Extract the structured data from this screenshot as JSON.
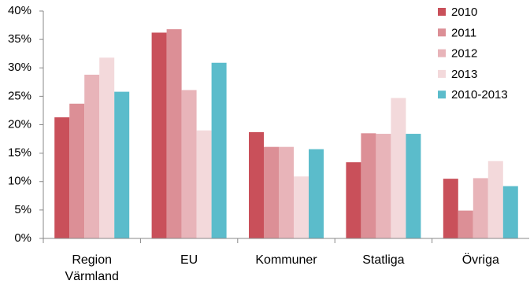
{
  "chart_data": {
    "type": "bar",
    "categories": [
      "Region Värmland",
      "EU",
      "Kommuner",
      "Statliga",
      "Övriga"
    ],
    "series": [
      {
        "name": "2010",
        "color": "#c9505a",
        "values": [
          21.3,
          36.2,
          18.7,
          13.4,
          10.5
        ]
      },
      {
        "name": "2011",
        "color": "#dc8f96",
        "values": [
          23.7,
          36.8,
          16.1,
          18.5,
          4.9
        ]
      },
      {
        "name": "2012",
        "color": "#e8b4b9",
        "values": [
          28.8,
          26.1,
          16.1,
          18.4,
          10.6
        ]
      },
      {
        "name": "2013",
        "color": "#f3d9db",
        "values": [
          31.8,
          19.0,
          10.9,
          24.7,
          13.6
        ]
      },
      {
        "name": "2010-2013",
        "color": "#5bbccb",
        "values": [
          25.8,
          30.9,
          15.7,
          18.4,
          9.2
        ]
      }
    ],
    "ylim": [
      0,
      40
    ],
    "yticks": [
      {
        "value": 0,
        "label": "0%"
      },
      {
        "value": 5,
        "label": "5%"
      },
      {
        "value": 10,
        "label": "10%"
      },
      {
        "value": 15,
        "label": "15%"
      },
      {
        "value": 20,
        "label": "20%"
      },
      {
        "value": 25,
        "label": "25%"
      },
      {
        "value": 30,
        "label": "30%"
      },
      {
        "value": 35,
        "label": "35%"
      },
      {
        "value": 40,
        "label": "40%"
      }
    ],
    "grid": false,
    "legend": "top-right"
  }
}
